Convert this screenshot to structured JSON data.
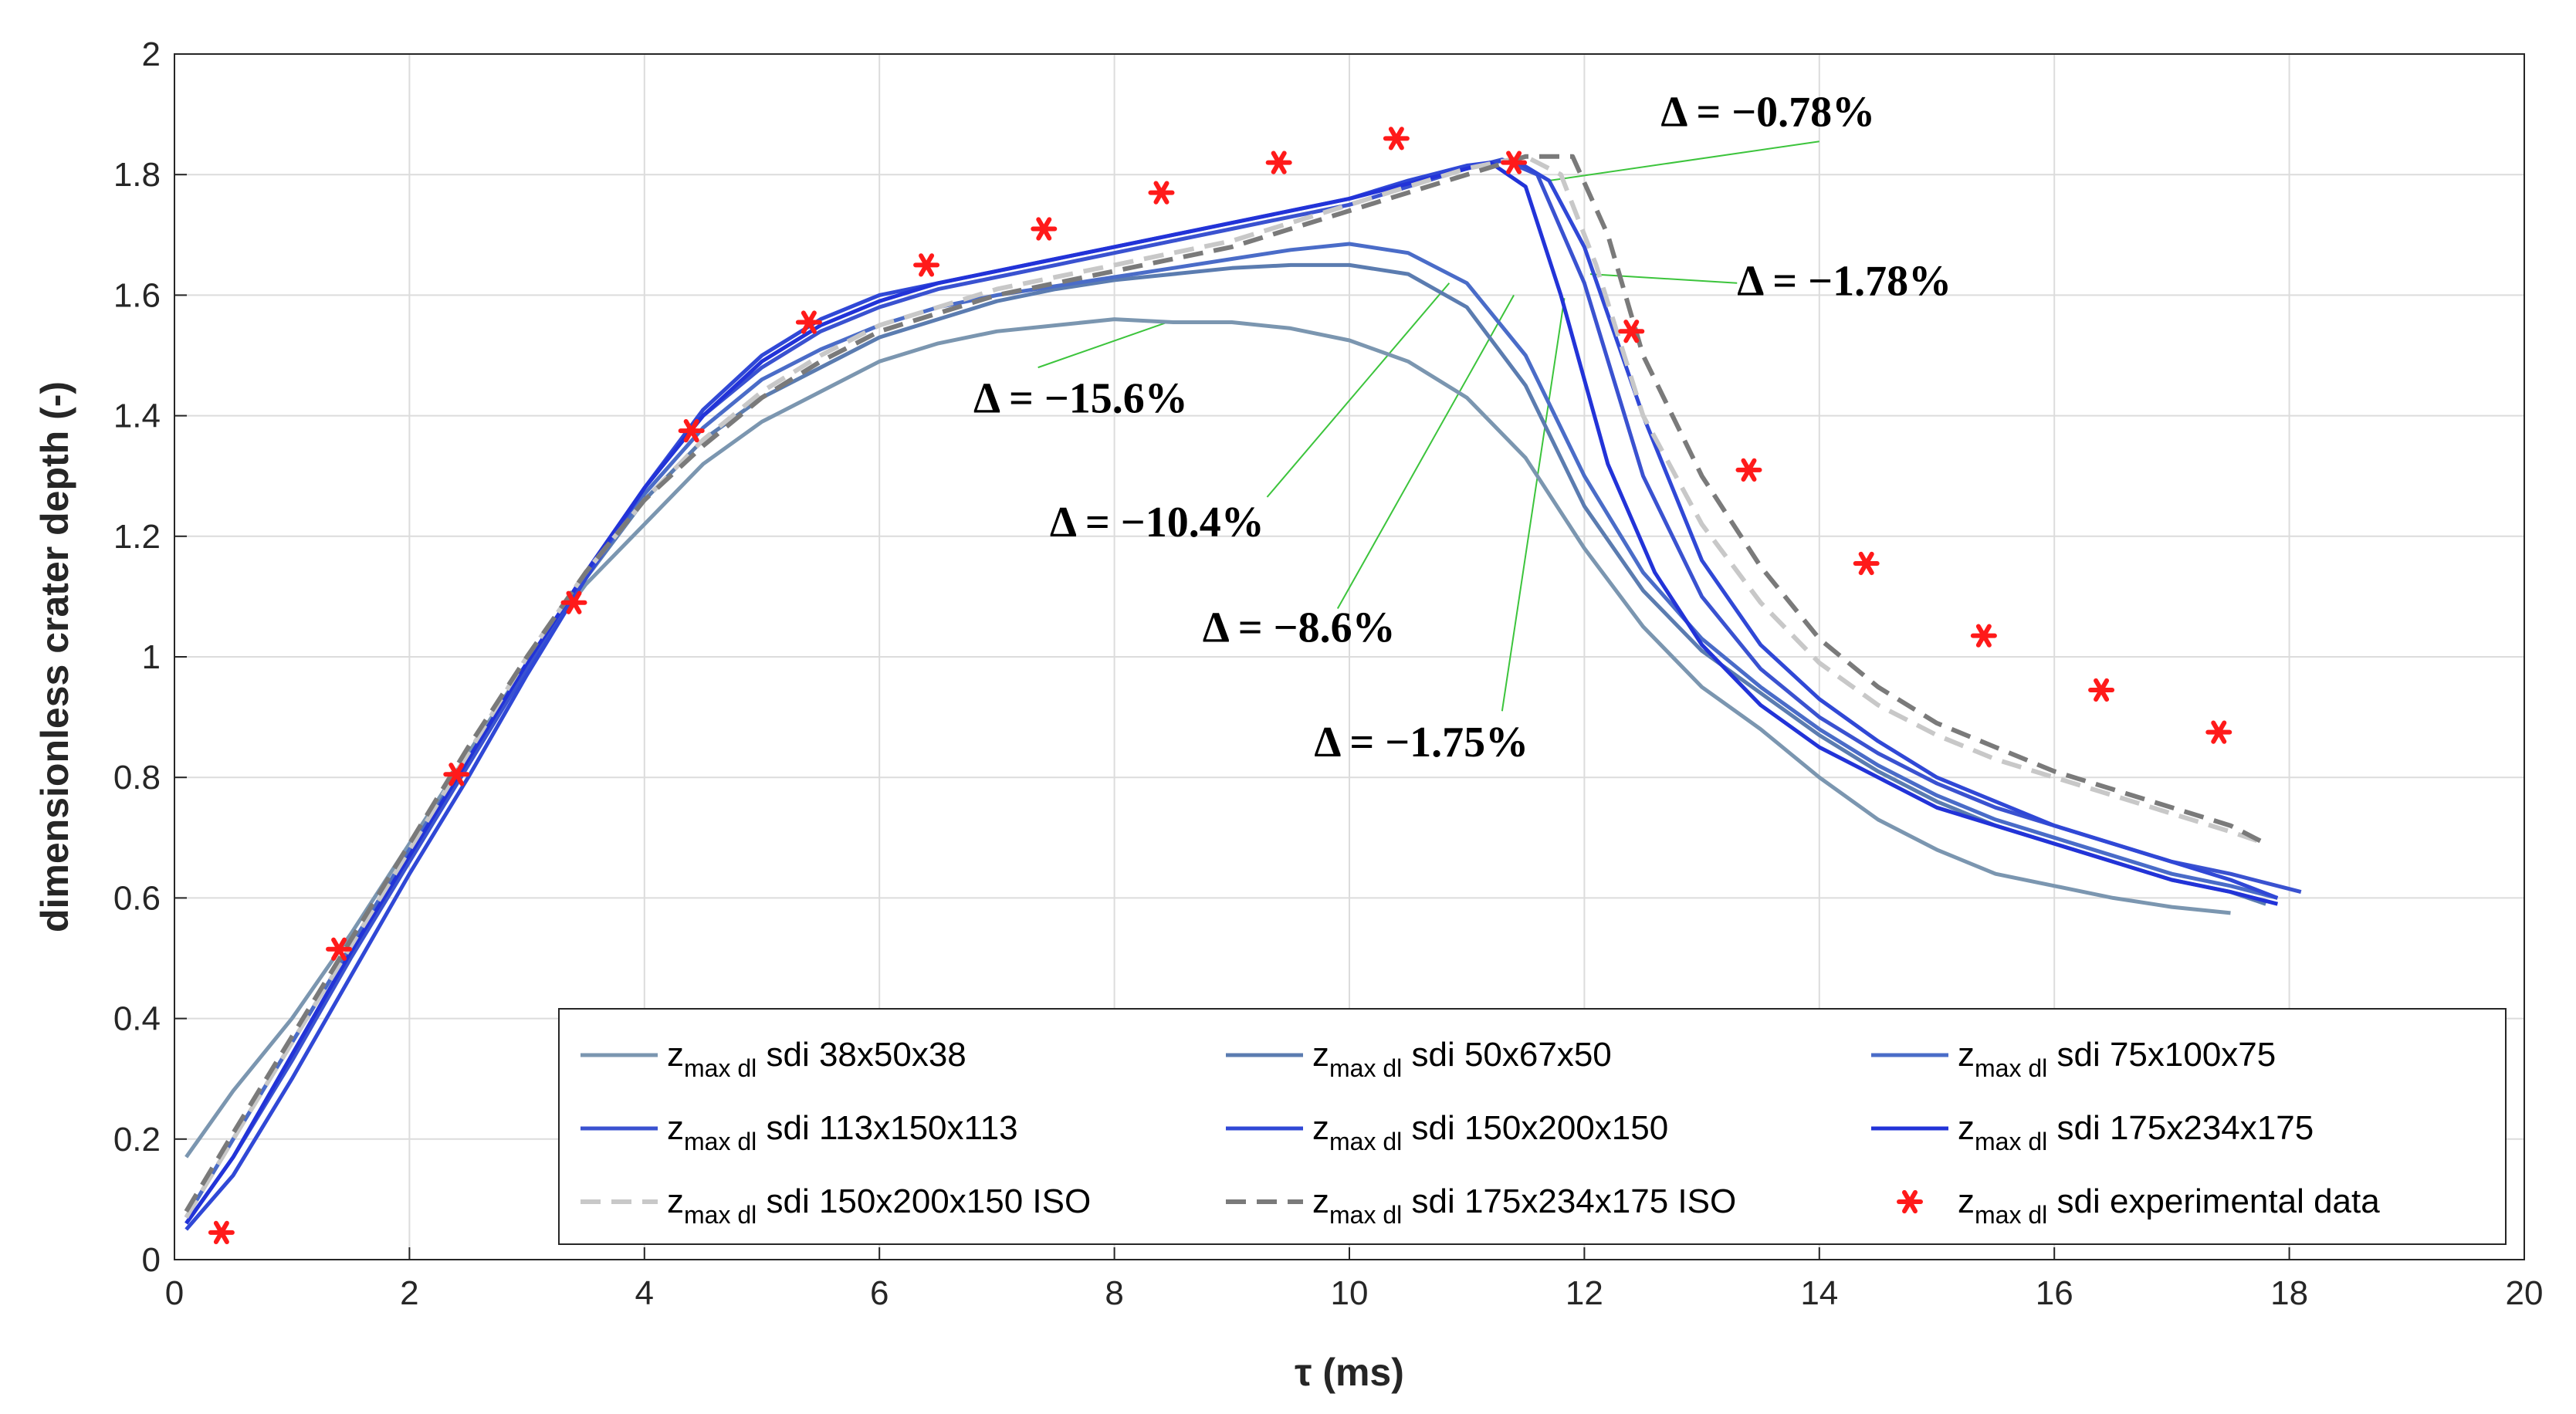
{
  "chart_data": {
    "type": "line",
    "xlabel": "τ (ms)",
    "ylabel": "dimensionless crater depth (-)",
    "xlim": [
      0,
      20
    ],
    "ylim": [
      0,
      2
    ],
    "xticks": [
      0,
      2,
      4,
      6,
      8,
      10,
      12,
      14,
      16,
      18,
      20
    ],
    "yticks": [
      0,
      0.2,
      0.4,
      0.6,
      0.8,
      1,
      1.2,
      1.4,
      1.6,
      1.8,
      2
    ],
    "xtick_labels": [
      "0",
      "2",
      "4",
      "6",
      "8",
      "10",
      "12",
      "14",
      "16",
      "18",
      "20"
    ],
    "ytick_labels": [
      "0",
      "0.2",
      "0.4",
      "0.6",
      "0.8",
      "1",
      "1.2",
      "1.4",
      "1.6",
      "1.8",
      "2"
    ],
    "grid": true,
    "legend_position": "bottom-right",
    "legend_main": "z",
    "legend_sub": "max dl",
    "series": [
      {
        "name": "sdi 38x50x38",
        "color": "#7b96b0",
        "dash": "solid",
        "x": [
          0.1,
          0.5,
          1,
          1.5,
          2,
          2.5,
          3,
          3.5,
          4,
          4.5,
          5,
          5.5,
          6,
          6.5,
          7,
          7.5,
          8,
          8.5,
          9,
          9.5,
          10,
          10.5,
          11,
          11.5,
          12,
          12.5,
          13,
          13.5,
          14,
          14.5,
          15,
          15.5,
          16,
          16.5,
          17,
          17.5
        ],
        "y": [
          0.17,
          0.28,
          0.4,
          0.54,
          0.69,
          0.84,
          0.99,
          1.12,
          1.22,
          1.32,
          1.39,
          1.44,
          1.49,
          1.52,
          1.54,
          1.55,
          1.56,
          1.555,
          1.555,
          1.545,
          1.525,
          1.49,
          1.43,
          1.33,
          1.18,
          1.05,
          0.95,
          0.88,
          0.8,
          0.73,
          0.68,
          0.64,
          0.62,
          0.6,
          0.585,
          0.575
        ]
      },
      {
        "name": "sdi 50x67x50",
        "color": "#5b7cb0",
        "dash": "solid",
        "x": [
          0.1,
          0.5,
          1,
          1.5,
          2,
          2.5,
          3,
          3.5,
          4,
          4.5,
          5,
          5.5,
          6,
          6.5,
          7,
          7.5,
          8,
          8.5,
          9,
          9.5,
          10,
          10.5,
          11,
          11.5,
          12,
          12.5,
          13,
          13.5,
          14,
          14.5,
          15,
          15.5,
          16,
          16.5,
          17,
          17.5,
          17.8
        ],
        "y": [
          0.07,
          0.2,
          0.36,
          0.52,
          0.68,
          0.83,
          0.98,
          1.13,
          1.26,
          1.36,
          1.43,
          1.48,
          1.53,
          1.56,
          1.59,
          1.61,
          1.625,
          1.635,
          1.645,
          1.65,
          1.65,
          1.635,
          1.58,
          1.45,
          1.25,
          1.11,
          1.01,
          0.94,
          0.87,
          0.81,
          0.76,
          0.72,
          0.69,
          0.66,
          0.63,
          0.61,
          0.59
        ]
      },
      {
        "name": "sdi 75x100x75",
        "color": "#4a6cc8",
        "dash": "solid",
        "x": [
          0.1,
          0.5,
          1,
          1.5,
          2,
          2.5,
          3,
          3.5,
          4,
          4.5,
          5,
          5.5,
          6,
          6.5,
          7,
          7.5,
          8,
          8.5,
          9,
          9.5,
          10,
          10.5,
          11,
          11.5,
          12,
          12.5,
          13,
          13.5,
          14,
          14.5,
          15,
          15.5,
          16,
          16.5,
          17,
          17.5,
          17.9
        ],
        "y": [
          0.07,
          0.2,
          0.36,
          0.52,
          0.68,
          0.83,
          0.98,
          1.13,
          1.27,
          1.38,
          1.46,
          1.51,
          1.55,
          1.58,
          1.6,
          1.615,
          1.63,
          1.645,
          1.66,
          1.675,
          1.685,
          1.67,
          1.62,
          1.5,
          1.3,
          1.14,
          1.03,
          0.95,
          0.88,
          0.82,
          0.77,
          0.73,
          0.7,
          0.67,
          0.64,
          0.62,
          0.6
        ]
      },
      {
        "name": "sdi 113x150x113",
        "color": "#3a52d0",
        "dash": "solid",
        "x": [
          0.1,
          0.5,
          1,
          1.5,
          2,
          2.5,
          3,
          3.5,
          4,
          4.5,
          5,
          5.5,
          6,
          6.5,
          7,
          7.5,
          8,
          8.5,
          9,
          9.5,
          10,
          10.5,
          11,
          11.3,
          11.6,
          12,
          12.5,
          13,
          13.5,
          14,
          14.5,
          15,
          15.5,
          16,
          16.5,
          17,
          17.5,
          18,
          18.1
        ],
        "y": [
          0.06,
          0.17,
          0.33,
          0.5,
          0.66,
          0.82,
          0.98,
          1.14,
          1.28,
          1.4,
          1.48,
          1.54,
          1.58,
          1.61,
          1.63,
          1.65,
          1.67,
          1.69,
          1.71,
          1.73,
          1.75,
          1.78,
          1.81,
          1.825,
          1.8,
          1.62,
          1.3,
          1.1,
          0.98,
          0.9,
          0.84,
          0.79,
          0.75,
          0.72,
          0.69,
          0.66,
          0.64,
          0.615,
          0.61
        ]
      },
      {
        "name": "sdi 150x200x150",
        "color": "#3048d6",
        "dash": "solid",
        "x": [
          0.1,
          0.5,
          1,
          1.5,
          2,
          2.5,
          3,
          3.5,
          4,
          4.5,
          5,
          5.5,
          6,
          6.5,
          7,
          7.5,
          8,
          8.5,
          9,
          9.5,
          10,
          10.5,
          11,
          11.4,
          11.7,
          12,
          12.5,
          13,
          13.5,
          14,
          14.5,
          15,
          15.5,
          16,
          16.5,
          17,
          17.5,
          17.9
        ],
        "y": [
          0.05,
          0.14,
          0.3,
          0.47,
          0.64,
          0.8,
          0.97,
          1.13,
          1.28,
          1.41,
          1.5,
          1.56,
          1.6,
          1.62,
          1.64,
          1.66,
          1.68,
          1.7,
          1.72,
          1.74,
          1.76,
          1.79,
          1.815,
          1.825,
          1.79,
          1.68,
          1.4,
          1.16,
          1.02,
          0.93,
          0.86,
          0.8,
          0.76,
          0.72,
          0.69,
          0.66,
          0.63,
          0.6
        ]
      },
      {
        "name": "sdi 175x234x175",
        "color": "#2233d8",
        "dash": "solid",
        "x": [
          0.1,
          0.5,
          1,
          1.5,
          2,
          2.5,
          3,
          3.5,
          4,
          4.5,
          5,
          5.5,
          6,
          6.5,
          7,
          7.5,
          8,
          8.5,
          9,
          9.5,
          10,
          10.5,
          11,
          11.2,
          11.5,
          11.8,
          12.2,
          12.6,
          13,
          13.5,
          14,
          14.5,
          15,
          15.5,
          16,
          16.5,
          17,
          17.5,
          17.9
        ],
        "y": [
          0.06,
          0.17,
          0.34,
          0.51,
          0.67,
          0.83,
          0.99,
          1.14,
          1.28,
          1.4,
          1.49,
          1.55,
          1.59,
          1.62,
          1.64,
          1.66,
          1.68,
          1.7,
          1.72,
          1.74,
          1.76,
          1.785,
          1.81,
          1.82,
          1.78,
          1.6,
          1.32,
          1.14,
          1.02,
          0.92,
          0.85,
          0.8,
          0.75,
          0.72,
          0.69,
          0.66,
          0.63,
          0.61,
          0.59
        ]
      },
      {
        "name": "sdi 150x200x150 ISO",
        "color": "#c8c8c8",
        "dash": "dashed",
        "x": [
          0.1,
          0.5,
          1,
          1.5,
          2,
          2.5,
          3,
          3.5,
          4,
          4.5,
          5,
          5.5,
          6,
          6.5,
          7,
          7.5,
          8,
          8.5,
          9,
          9.5,
          10,
          10.5,
          11,
          11.5,
          11.8,
          12.1,
          12.5,
          13,
          13.5,
          14,
          14.5,
          15,
          15.5,
          16,
          16.5,
          17,
          17.5,
          17.8
        ],
        "y": [
          0.07,
          0.2,
          0.36,
          0.52,
          0.68,
          0.84,
          1.0,
          1.14,
          1.26,
          1.36,
          1.44,
          1.5,
          1.55,
          1.58,
          1.61,
          1.63,
          1.65,
          1.67,
          1.69,
          1.72,
          1.75,
          1.78,
          1.81,
          1.83,
          1.8,
          1.65,
          1.4,
          1.22,
          1.09,
          0.99,
          0.92,
          0.87,
          0.83,
          0.8,
          0.77,
          0.74,
          0.71,
          0.69
        ]
      },
      {
        "name": "sdi 175x234x175 ISO",
        "color": "#7a7a7a",
        "dash": "dashed",
        "x": [
          0.1,
          0.5,
          1,
          1.5,
          2,
          2.5,
          3,
          3.5,
          4,
          4.5,
          5,
          5.5,
          6,
          6.5,
          7,
          7.5,
          8,
          8.5,
          9,
          9.5,
          10,
          10.5,
          11,
          11.5,
          11.9,
          12.2,
          12.5,
          13,
          13.5,
          14,
          14.5,
          15,
          15.5,
          16,
          16.5,
          17,
          17.5,
          17.8
        ],
        "y": [
          0.08,
          0.21,
          0.37,
          0.53,
          0.69,
          0.85,
          1.0,
          1.14,
          1.26,
          1.35,
          1.43,
          1.49,
          1.54,
          1.57,
          1.6,
          1.62,
          1.64,
          1.66,
          1.68,
          1.71,
          1.74,
          1.77,
          1.8,
          1.83,
          1.83,
          1.7,
          1.5,
          1.3,
          1.15,
          1.03,
          0.95,
          0.89,
          0.85,
          0.81,
          0.78,
          0.75,
          0.72,
          0.69
        ]
      }
    ],
    "experimental": {
      "name": "sdi experimental data",
      "color": "#ff1a1a",
      "x": [
        0.4,
        1.4,
        2.4,
        3.4,
        4.4,
        5.4,
        6.4,
        7.4,
        8.4,
        9.4,
        10.4,
        11.4,
        12.4,
        13.4,
        14.4,
        15.4,
        16.4,
        17.4
      ],
      "y": [
        0.045,
        0.515,
        0.805,
        1.09,
        1.375,
        1.555,
        1.65,
        1.71,
        1.77,
        1.82,
        1.86,
        1.82,
        1.54,
        1.31,
        1.155,
        1.035,
        0.945,
        0.875
      ]
    },
    "annotations": [
      {
        "text": "Δ = −0.78%",
        "tx": 12.65,
        "ty": 1.88,
        "lx1": 14.0,
        "ly1": 1.855,
        "lx2": 11.7,
        "ly2": 1.79
      },
      {
        "text": "Δ = −1.78%",
        "tx": 13.3,
        "ty": 1.6,
        "lx1": 13.3,
        "ly1": 1.62,
        "lx2": 12.05,
        "ly2": 1.635
      },
      {
        "text": "Δ = −15.6%",
        "tx": 6.8,
        "ty": 1.405,
        "lx1": 7.35,
        "ly1": 1.48,
        "lx2": 8.45,
        "ly2": 1.555
      },
      {
        "text": "Δ = −10.4%",
        "tx": 7.45,
        "ty": 1.2,
        "lx1": 9.3,
        "ly1": 1.265,
        "lx2": 10.85,
        "ly2": 1.62
      },
      {
        "text": "Δ = −8.6%",
        "tx": 8.75,
        "ty": 1.025,
        "lx1": 9.9,
        "ly1": 1.08,
        "lx2": 11.4,
        "ly2": 1.6
      },
      {
        "text": "Δ = −1.75%",
        "tx": 9.7,
        "ty": 0.835,
        "lx1": 11.3,
        "ly1": 0.91,
        "lx2": 11.83,
        "ly2": 1.595
      }
    ]
  }
}
